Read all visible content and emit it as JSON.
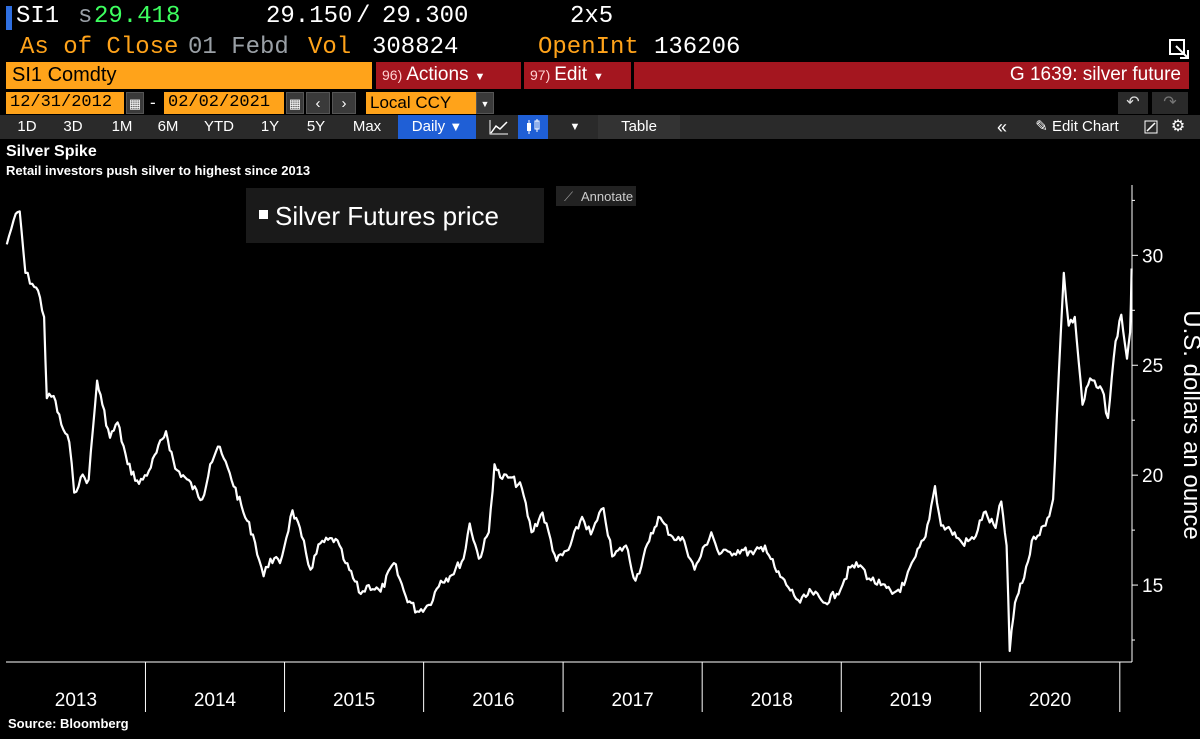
{
  "quote": {
    "ticker": "SI1",
    "last_prefix": "s",
    "last_price": "29.418",
    "bid": "29.150",
    "slash": "/",
    "ask": "29.300",
    "size": "2x5",
    "as_of_label": "As of Close",
    "as_of_date": "01 Febd",
    "vol_label": "Vol",
    "vol_value": "308824",
    "openint_label": "OpenInt",
    "openint_value": "136206"
  },
  "toolbar": {
    "security": "SI1 Comdty",
    "actions_num": "96)",
    "actions_label": "Actions",
    "edit_num": "97)",
    "edit_label": "Edit",
    "chart_title": "G 1639: silver future"
  },
  "range": {
    "start_date": "12/31/2012",
    "dash": "-",
    "end_date": "02/02/2021",
    "currency": "Local CCY"
  },
  "periods": [
    "1D",
    "3D",
    "1M",
    "6M",
    "YTD",
    "1Y",
    "5Y",
    "Max"
  ],
  "frequency": "Daily",
  "table_label": "Table",
  "edit_chart_label": "Edit Chart",
  "annotate_label": "Annotate",
  "legend_label": "Silver Futures price",
  "footer": {
    "source": "Source: Bloomberg"
  },
  "colors": {
    "accent": "#ffa31a",
    "red": "#a4161f",
    "blue": "#1f5fd6",
    "price_up": "#3dff5f"
  },
  "icons": [
    "calendar-icon",
    "chevron-left-icon",
    "chevron-right-icon",
    "undo-icon",
    "redo-icon",
    "line-chart-icon",
    "candlestick-icon",
    "double-chevron-left-icon",
    "pencil-icon",
    "settings-icon",
    "resize-icon"
  ],
  "chart_data": {
    "type": "line",
    "title": "Silver Spike",
    "subtitle": "Retail investors push silver to highest since 2013",
    "ylabel": "U.S. dollars an ounce",
    "xlabel": "",
    "ylim": [
      11.5,
      33.2
    ],
    "yticks": [
      15,
      20,
      25,
      30
    ],
    "year_labels": [
      "2013",
      "2014",
      "2015",
      "2016",
      "2017",
      "2018",
      "2019",
      "2020"
    ],
    "grid": false,
    "series": [
      {
        "name": "Silver Futures price",
        "points": [
          [
            "2013-01-02",
            30.5
          ],
          [
            "2013-01-20",
            31.6
          ],
          [
            "2013-02-05",
            32.0
          ],
          [
            "2013-02-20",
            29.2
          ],
          [
            "2013-03-10",
            28.7
          ],
          [
            "2013-03-25",
            28.4
          ],
          [
            "2013-04-10",
            27.2
          ],
          [
            "2013-04-17",
            23.5
          ],
          [
            "2013-05-05",
            23.6
          ],
          [
            "2013-05-25",
            22.3
          ],
          [
            "2013-06-15",
            21.5
          ],
          [
            "2013-06-28",
            19.2
          ],
          [
            "2013-07-15",
            19.9
          ],
          [
            "2013-08-05",
            19.8
          ],
          [
            "2013-08-27",
            24.3
          ],
          [
            "2013-09-10",
            23.2
          ],
          [
            "2013-09-30",
            21.7
          ],
          [
            "2013-10-20",
            22.4
          ],
          [
            "2013-11-15",
            20.5
          ],
          [
            "2013-12-15",
            19.6
          ],
          [
            "2014-01-10",
            20.2
          ],
          [
            "2014-02-24",
            22.0
          ],
          [
            "2014-03-20",
            20.3
          ],
          [
            "2014-04-15",
            19.9
          ],
          [
            "2014-05-30",
            18.9
          ],
          [
            "2014-06-20",
            20.5
          ],
          [
            "2014-07-10",
            21.3
          ],
          [
            "2014-08-10",
            20.1
          ],
          [
            "2014-09-15",
            18.3
          ],
          [
            "2014-10-10",
            17.3
          ],
          [
            "2014-11-07",
            15.4
          ],
          [
            "2014-11-25",
            16.2
          ],
          [
            "2014-12-20",
            16.0
          ],
          [
            "2015-01-22",
            18.4
          ],
          [
            "2015-02-15",
            17.2
          ],
          [
            "2015-03-10",
            15.7
          ],
          [
            "2015-04-05",
            16.9
          ],
          [
            "2015-05-15",
            17.1
          ],
          [
            "2015-06-10",
            16.0
          ],
          [
            "2015-07-20",
            14.6
          ],
          [
            "2015-08-10",
            15.0
          ],
          [
            "2015-09-10",
            14.7
          ],
          [
            "2015-10-15",
            16.0
          ],
          [
            "2015-11-15",
            14.5
          ],
          [
            "2015-12-15",
            13.8
          ],
          [
            "2016-01-15",
            14.1
          ],
          [
            "2016-02-15",
            15.2
          ],
          [
            "2016-03-10",
            15.4
          ],
          [
            "2016-04-15",
            16.2
          ],
          [
            "2016-05-01",
            17.8
          ],
          [
            "2016-05-25",
            16.2
          ],
          [
            "2016-06-20",
            17.4
          ],
          [
            "2016-07-05",
            20.5
          ],
          [
            "2016-07-20",
            19.9
          ],
          [
            "2016-08-15",
            19.9
          ],
          [
            "2016-09-15",
            19.4
          ],
          [
            "2016-10-10",
            17.4
          ],
          [
            "2016-11-08",
            18.3
          ],
          [
            "2016-12-15",
            16.1
          ],
          [
            "2017-01-15",
            16.6
          ],
          [
            "2017-02-20",
            18.1
          ],
          [
            "2017-03-15",
            17.3
          ],
          [
            "2017-04-17",
            18.5
          ],
          [
            "2017-05-10",
            16.3
          ],
          [
            "2017-06-15",
            16.8
          ],
          [
            "2017-07-10",
            15.2
          ],
          [
            "2017-08-15",
            17.0
          ],
          [
            "2017-09-08",
            18.1
          ],
          [
            "2017-10-15",
            17.2
          ],
          [
            "2017-11-15",
            17.0
          ],
          [
            "2017-12-12",
            15.7
          ],
          [
            "2018-01-25",
            17.4
          ],
          [
            "2018-02-15",
            16.4
          ],
          [
            "2018-03-15",
            16.5
          ],
          [
            "2018-04-15",
            16.6
          ],
          [
            "2018-05-15",
            16.4
          ],
          [
            "2018-06-15",
            16.8
          ],
          [
            "2018-07-15",
            15.6
          ],
          [
            "2018-08-15",
            14.9
          ],
          [
            "2018-09-15",
            14.2
          ],
          [
            "2018-10-15",
            14.7
          ],
          [
            "2018-11-15",
            14.2
          ],
          [
            "2018-12-20",
            14.6
          ],
          [
            "2019-01-25",
            15.8
          ],
          [
            "2019-02-20",
            15.9
          ],
          [
            "2019-03-15",
            15.3
          ],
          [
            "2019-04-15",
            15.0
          ],
          [
            "2019-05-15",
            14.6
          ],
          [
            "2019-06-15",
            15.0
          ],
          [
            "2019-07-15",
            16.3
          ],
          [
            "2019-08-10",
            17.2
          ],
          [
            "2019-09-04",
            19.5
          ],
          [
            "2019-09-20",
            17.7
          ],
          [
            "2019-10-15",
            17.5
          ],
          [
            "2019-11-15",
            16.9
          ],
          [
            "2019-12-15",
            17.1
          ],
          [
            "2020-01-10",
            18.3
          ],
          [
            "2020-02-10",
            17.6
          ],
          [
            "2020-02-25",
            18.8
          ],
          [
            "2020-03-10",
            16.8
          ],
          [
            "2020-03-18",
            12.0
          ],
          [
            "2020-04-01",
            14.2
          ],
          [
            "2020-04-20",
            15.1
          ],
          [
            "2020-05-20",
            17.2
          ],
          [
            "2020-06-20",
            17.7
          ],
          [
            "2020-07-10",
            18.9
          ],
          [
            "2020-07-25",
            24.6
          ],
          [
            "2020-08-07",
            29.2
          ],
          [
            "2020-08-20",
            26.8
          ],
          [
            "2020-09-05",
            27.2
          ],
          [
            "2020-09-25",
            23.2
          ],
          [
            "2020-10-15",
            24.4
          ],
          [
            "2020-11-01",
            24.0
          ],
          [
            "2020-11-15",
            23.9
          ],
          [
            "2020-12-01",
            22.6
          ],
          [
            "2020-12-21",
            26.1
          ],
          [
            "2021-01-05",
            27.3
          ],
          [
            "2021-01-20",
            25.3
          ],
          [
            "2021-01-28",
            26.5
          ],
          [
            "2021-02-01",
            29.4
          ]
        ]
      }
    ]
  }
}
